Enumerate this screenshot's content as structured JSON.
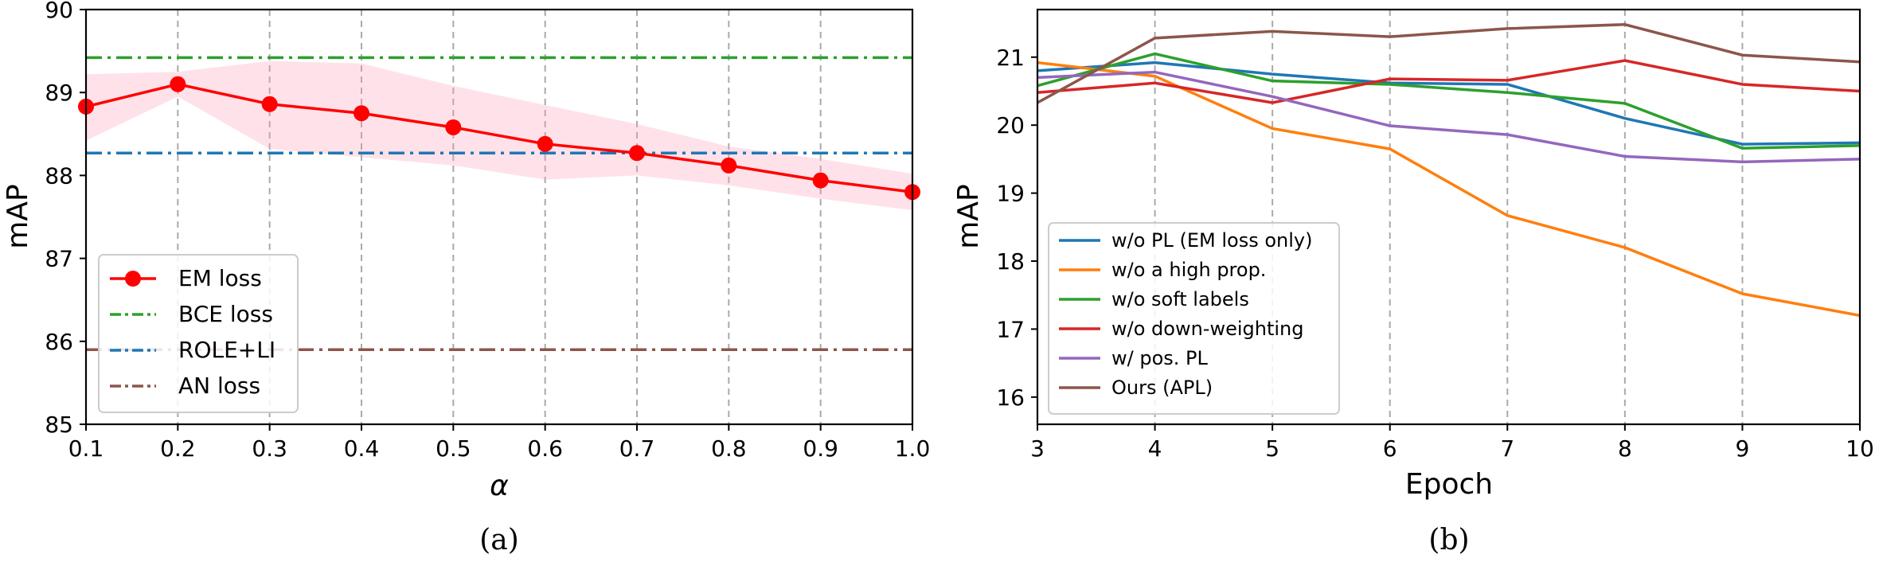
{
  "chart_data": [
    {
      "type": "line",
      "caption": "(a)",
      "xlabel": "α",
      "ylabel": "mAP",
      "xlim": [
        0.1,
        1.0
      ],
      "ylim": [
        85,
        90
      ],
      "xticks": [
        "0.1",
        "0.2",
        "0.3",
        "0.4",
        "0.5",
        "0.6",
        "0.7",
        "0.8",
        "0.9",
        "1.0"
      ],
      "yticks": [
        "85",
        "86",
        "87",
        "88",
        "89",
        "90"
      ],
      "grid": "vertical dashed",
      "legend_position": "lower-left",
      "x": [
        0.1,
        0.2,
        0.3,
        0.4,
        0.5,
        0.6,
        0.7,
        0.8,
        0.9,
        1.0
      ],
      "series": [
        {
          "name": "EM loss",
          "kind": "line-markers",
          "color": "#ff0000",
          "values": [
            88.83,
            89.1,
            88.86,
            88.75,
            88.58,
            88.38,
            88.27,
            88.12,
            87.94,
            87.8
          ],
          "band_upper": [
            89.22,
            89.25,
            89.38,
            89.35,
            89.08,
            88.85,
            88.62,
            88.35,
            88.2,
            88.02
          ],
          "band_lower": [
            88.42,
            88.95,
            88.32,
            88.22,
            88.12,
            87.95,
            88.0,
            87.88,
            87.72,
            87.58
          ]
        },
        {
          "name": "BCE loss",
          "kind": "constant",
          "color": "#2ca02c",
          "value": 89.42
        },
        {
          "name": "ROLE+LI",
          "kind": "constant",
          "color": "#1f77b4",
          "value": 88.27
        },
        {
          "name": "AN loss",
          "kind": "constant",
          "color": "#8c564b",
          "value": 85.9
        }
      ]
    },
    {
      "type": "line",
      "caption": "(b)",
      "xlabel": "Epoch",
      "ylabel": "mAP",
      "xlim": [
        3,
        10
      ],
      "ylim": [
        15.6,
        21.7
      ],
      "xticks": [
        "3",
        "4",
        "5",
        "6",
        "7",
        "8",
        "9",
        "10"
      ],
      "yticks": [
        "16",
        "17",
        "18",
        "19",
        "20",
        "21"
      ],
      "ytick_values": [
        16,
        17,
        18,
        19,
        20,
        21
      ],
      "grid": "vertical dashed",
      "legend_position": "lower-left",
      "x": [
        3,
        4,
        5,
        6,
        7,
        8,
        9,
        10
      ],
      "series": [
        {
          "name": "w/o PL (EM loss only)",
          "color": "#1f77b4",
          "values": [
            20.8,
            20.92,
            20.75,
            20.62,
            20.6,
            20.1,
            19.72,
            19.74
          ]
        },
        {
          "name": "w/o a high prop.",
          "color": "#ff7f0e",
          "values": [
            20.92,
            20.72,
            19.95,
            19.65,
            18.67,
            18.2,
            17.52,
            17.2
          ]
        },
        {
          "name": "w/o soft labels",
          "color": "#2ca02c",
          "values": [
            20.58,
            21.05,
            20.65,
            20.6,
            20.48,
            20.32,
            19.66,
            19.7
          ]
        },
        {
          "name": "w/o down-weighting",
          "color": "#d62728",
          "values": [
            20.48,
            20.62,
            20.33,
            20.68,
            20.66,
            20.95,
            20.6,
            20.5
          ]
        },
        {
          "name": "w/ pos. PL",
          "color": "#9467bd",
          "values": [
            20.7,
            20.78,
            20.42,
            19.99,
            19.86,
            19.54,
            19.46,
            19.5
          ]
        },
        {
          "name": "Ours (APL)",
          "color": "#8c564b",
          "values": [
            20.33,
            21.28,
            21.38,
            21.3,
            21.42,
            21.48,
            21.03,
            20.93
          ]
        }
      ]
    }
  ]
}
